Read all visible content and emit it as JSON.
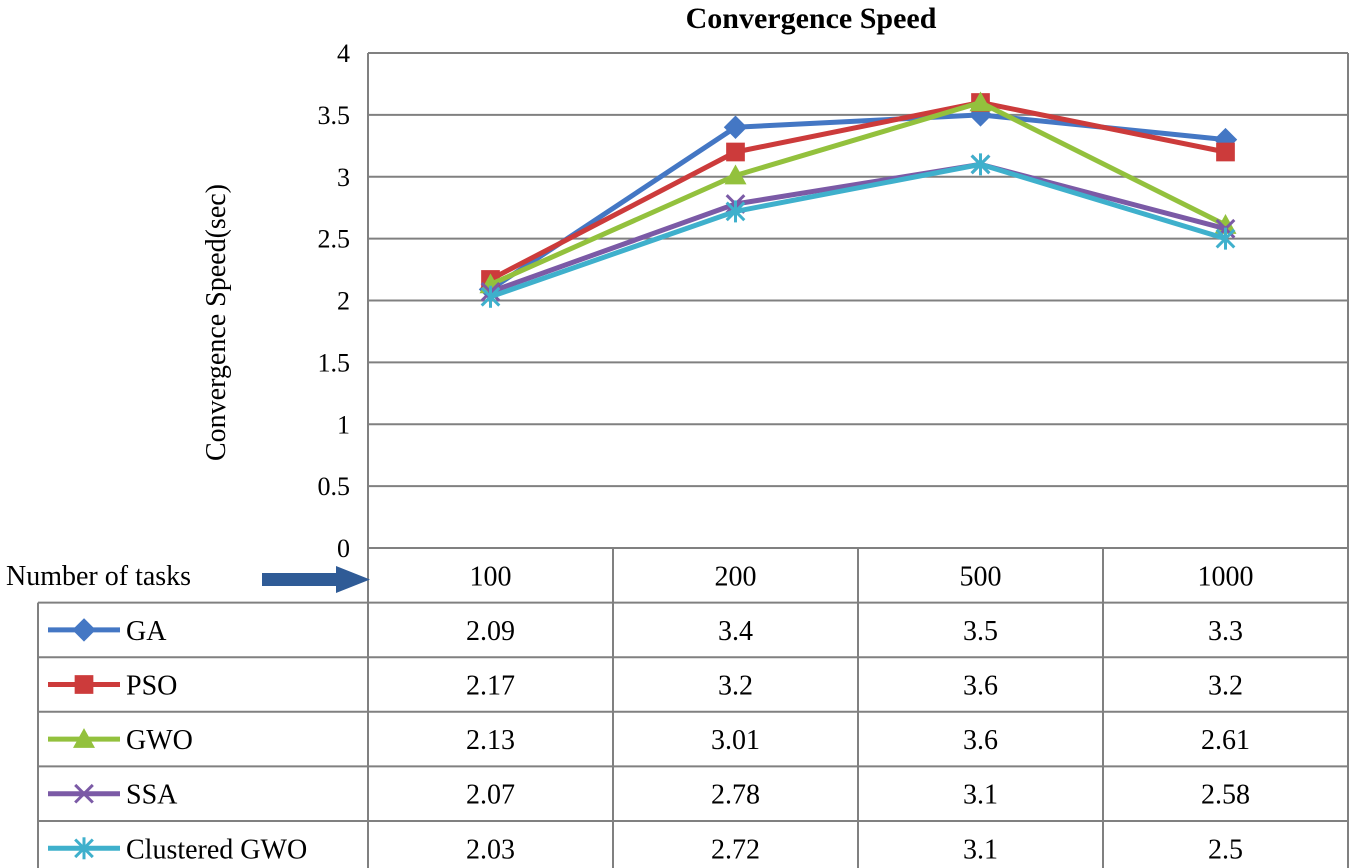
{
  "chart_data": {
    "type": "line",
    "title": "Convergence Speed",
    "ylabel": "Convergence Speed(sec)",
    "xlabel": "Number of tasks",
    "categories": [
      "100",
      "200",
      "500",
      "1000"
    ],
    "ylim": [
      0,
      4
    ],
    "yticks": [
      "0",
      "0.5",
      "1",
      "1.5",
      "2",
      "2.5",
      "3",
      "3.5",
      "4"
    ],
    "grid": true,
    "legend": "data-table-below",
    "series": [
      {
        "name": "GA",
        "marker": "diamond",
        "color": "#4477c4",
        "values": [
          2.09,
          3.4,
          3.5,
          3.3
        ],
        "labels": [
          "2.09",
          "3.4",
          "3.5",
          "3.3"
        ]
      },
      {
        "name": "PSO",
        "marker": "square",
        "color": "#cc3b3b",
        "values": [
          2.17,
          3.2,
          3.6,
          3.2
        ],
        "labels": [
          "2.17",
          "3.2",
          "3.6",
          "3.2"
        ]
      },
      {
        "name": "GWO",
        "marker": "triangle",
        "color": "#93c13d",
        "values": [
          2.13,
          3.01,
          3.6,
          2.61
        ],
        "labels": [
          "2.13",
          "3.01",
          "3.6",
          "2.61"
        ]
      },
      {
        "name": "SSA",
        "marker": "x",
        "color": "#7b5aa6",
        "values": [
          2.07,
          2.78,
          3.1,
          2.58
        ],
        "labels": [
          "2.07",
          "2.78",
          "3.1",
          "2.58"
        ]
      },
      {
        "name": "Clustered GWO",
        "marker": "star",
        "color": "#3fb0cc",
        "values": [
          2.03,
          2.72,
          3.1,
          2.5
        ],
        "labels": [
          "2.03",
          "2.72",
          "3.1",
          "2.5"
        ]
      }
    ]
  }
}
